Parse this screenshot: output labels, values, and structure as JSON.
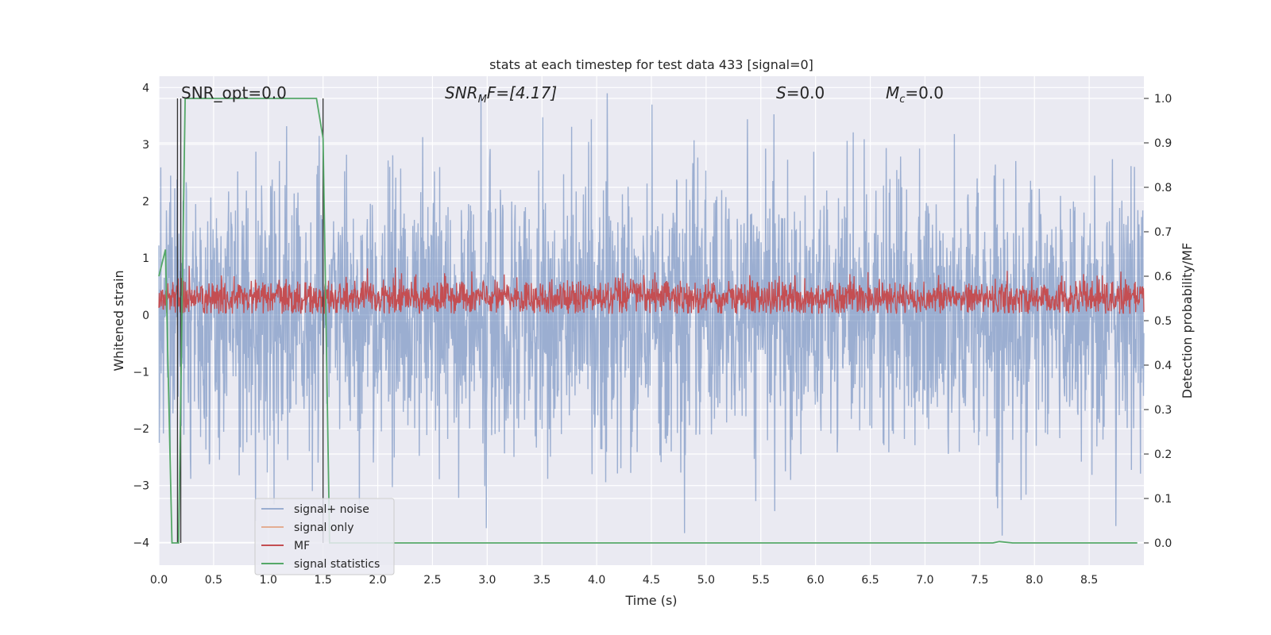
{
  "chart_data": {
    "type": "line",
    "title": "stats at each timestep for test data 433 [signal=0]",
    "xlabel": "Time (s)",
    "ylabel": "Whitened strain",
    "y2label": "Detection probability/MF",
    "xlim": [
      0.0,
      9.0
    ],
    "ylim": [
      -4.4,
      4.2
    ],
    "y2lim": [
      -0.05,
      1.05
    ],
    "x_ticks": [
      "0.0",
      "0.5",
      "1.0",
      "1.5",
      "2.0",
      "2.5",
      "3.0",
      "3.5",
      "4.0",
      "4.5",
      "5.0",
      "5.5",
      "6.0",
      "6.5",
      "7.0",
      "7.5",
      "8.0",
      "8.5"
    ],
    "y_ticks": [
      "4",
      "3",
      "2",
      "1",
      "0",
      "−1",
      "−2",
      "−3",
      "−4"
    ],
    "y2_ticks": [
      "1.0",
      "0.9",
      "0.8",
      "0.7",
      "0.6",
      "0.5",
      "0.4",
      "0.3",
      "0.2",
      "0.1",
      "0.0"
    ],
    "grid": true,
    "legend_position": "lower-left",
    "annotations": {
      "snr_opt": "SNR_opt=0.0",
      "snr_mf_main": "SNR",
      "snr_mf_sub": "M",
      "snr_mf_rest": "F=[4.17]",
      "s_main": "S",
      "s_rest": "=0.0",
      "mc_main": "M",
      "mc_sub": "c",
      "mc_rest": "=0.0"
    },
    "series": [
      {
        "name": "signal+ noise",
        "color": "#4c72b0",
        "description_values": "whitened strain noise, roughly gaussian, amplitude within about ±4",
        "approx_range": [
          -4.0,
          4.0
        ]
      },
      {
        "name": "signal only",
        "color": "#dd8452",
        "values": []
      },
      {
        "name": "MF",
        "color": "#c44e52",
        "approx_range": [
          0.0,
          0.95
        ]
      },
      {
        "name": "signal statistics",
        "color": "#55a868",
        "x": [
          0.0,
          0.06,
          0.12,
          0.18,
          0.24,
          0.3,
          0.6,
          0.9,
          1.2,
          1.44,
          1.5,
          1.56,
          1.62,
          7.62,
          7.68,
          7.8,
          8.94
        ],
        "y": [
          0.6,
          0.66,
          0.0,
          0.0,
          1.0,
          1.0,
          1.0,
          1.0,
          1.0,
          1.0,
          0.91,
          0.0,
          0.0,
          0.0,
          0.003,
          0.0,
          0.0
        ]
      }
    ],
    "vertical_markers_x": [
      0.17,
      0.2,
      1.5
    ],
    "legend": [
      "signal+ noise",
      "signal only",
      "MF",
      "signal statistics"
    ]
  }
}
